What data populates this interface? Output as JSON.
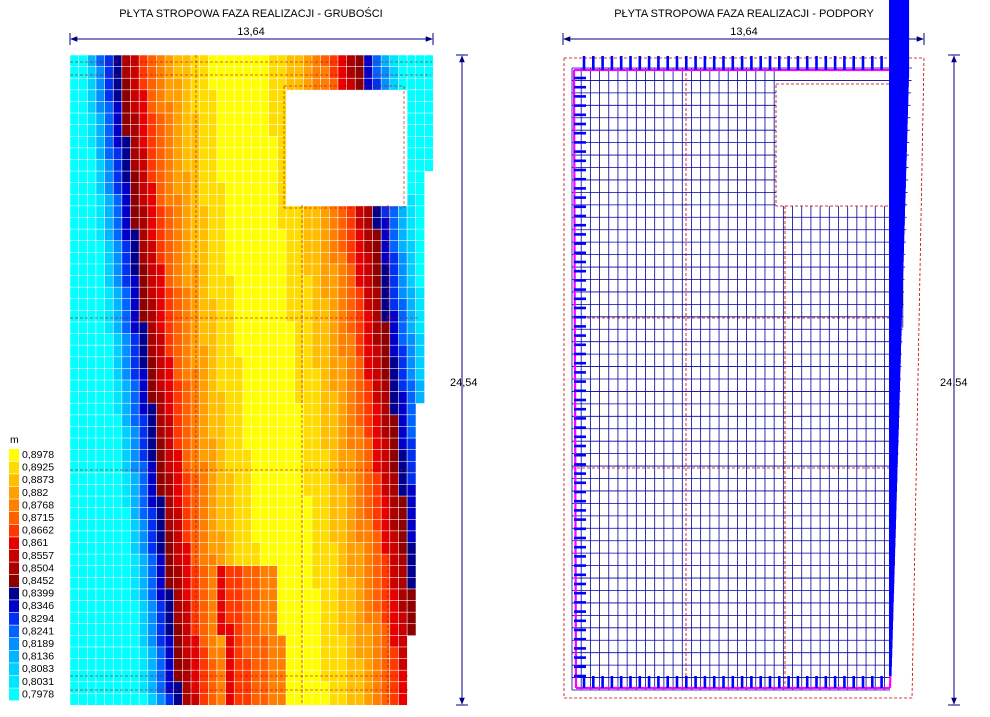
{
  "left_panel": {
    "title": "PŁYTA STROPOWA FAZA REALIZACJI - GRUBOŚCI",
    "width_label": "13,64",
    "height_label": "24,54"
  },
  "right_panel": {
    "title": "PŁYTA STROPOWA FAZA REALIZACJI - PODPORY",
    "width_label": "13,64",
    "height_label": "24,54"
  },
  "legend": {
    "unit": "m",
    "entries": [
      {
        "value": "0,8978",
        "color": "#ffff00"
      },
      {
        "value": "0,8925",
        "color": "#ffdc00"
      },
      {
        "value": "0,8873",
        "color": "#ffbe00"
      },
      {
        "value": "0,882",
        "color": "#ff9f00"
      },
      {
        "value": "0,8768",
        "color": "#ff8000"
      },
      {
        "value": "0,8715",
        "color": "#ff6000"
      },
      {
        "value": "0,8662",
        "color": "#ff3800"
      },
      {
        "value": "0,861",
        "color": "#e60000"
      },
      {
        "value": "0,8557",
        "color": "#c80000"
      },
      {
        "value": "0,8504",
        "color": "#aa0000"
      },
      {
        "value": "0,8452",
        "color": "#8c0000"
      },
      {
        "value": "0,8399",
        "color": "#00008c"
      },
      {
        "value": "0,8346",
        "color": "#0000c8"
      },
      {
        "value": "0,8294",
        "color": "#0030f0"
      },
      {
        "value": "0,8241",
        "color": "#0064ff"
      },
      {
        "value": "0,8189",
        "color": "#0090ff"
      },
      {
        "value": "0,8136",
        "color": "#00b4ff"
      },
      {
        "value": "0,8083",
        "color": "#00d0ff"
      },
      {
        "value": "0,8031",
        "color": "#00e6ff"
      },
      {
        "value": "0,7978",
        "color": "#00ffff"
      }
    ]
  },
  "colors": {
    "dimension": "#000080",
    "mesh_right": "#0000a0",
    "dash": "#c00000",
    "support": "#0000ff",
    "support_edge": "#ff00ff"
  }
}
